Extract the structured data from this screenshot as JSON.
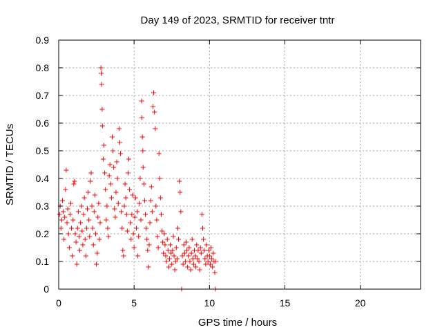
{
  "chart_data": {
    "type": "scatter",
    "title": "Day 149 of 2023, SRMTID for receiver tntr",
    "xlabel": "GPS time / hours",
    "ylabel": "SRMTID / TECUs",
    "xlim": [
      0,
      24
    ],
    "ylim": [
      0,
      0.9
    ],
    "xticks": [
      0,
      5,
      10,
      15,
      20
    ],
    "yticks": [
      0,
      0.1,
      0.2,
      0.3,
      0.4,
      0.5,
      0.6,
      0.7,
      0.8,
      0.9
    ],
    "xtick_labels": [
      "0",
      "5",
      "10",
      "15",
      "20"
    ],
    "ytick_labels": [
      "0",
      "0.1",
      "0.2",
      "0.3",
      "0.4",
      "0.5",
      "0.6",
      "0.7",
      "0.8",
      "0.9"
    ],
    "grid": true,
    "marker": "+",
    "color": "#ff0000",
    "series": [
      {
        "name": "SRMTID",
        "points": [
          [
            0.05,
            0.27
          ],
          [
            0.1,
            0.3
          ],
          [
            0.15,
            0.22
          ],
          [
            0.2,
            0.25
          ],
          [
            0.25,
            0.32
          ],
          [
            0.3,
            0.28
          ],
          [
            0.35,
            0.18
          ],
          [
            0.4,
            0.26
          ],
          [
            0.45,
            0.36
          ],
          [
            0.5,
            0.43
          ],
          [
            0.55,
            0.24
          ],
          [
            0.6,
            0.29
          ],
          [
            0.65,
            0.2
          ],
          [
            0.7,
            0.15
          ],
          [
            0.75,
            0.27
          ],
          [
            0.8,
            0.31
          ],
          [
            0.85,
            0.22
          ],
          [
            0.9,
            0.12
          ],
          [
            0.95,
            0.25
          ],
          [
            1.0,
            0.38
          ],
          [
            1.05,
            0.39
          ],
          [
            1.1,
            0.2
          ],
          [
            1.15,
            0.17
          ],
          [
            1.2,
            0.09
          ],
          [
            1.25,
            0.22
          ],
          [
            1.3,
            0.28
          ],
          [
            1.35,
            0.19
          ],
          [
            1.4,
            0.14
          ],
          [
            1.45,
            0.24
          ],
          [
            1.5,
            0.3
          ],
          [
            1.55,
            0.21
          ],
          [
            1.6,
            0.16
          ],
          [
            1.65,
            0.27
          ],
          [
            1.7,
            0.33
          ],
          [
            1.75,
            0.18
          ],
          [
            1.8,
            0.12
          ],
          [
            1.85,
            0.22
          ],
          [
            1.9,
            0.29
          ],
          [
            1.95,
            0.35
          ],
          [
            2.0,
            0.25
          ],
          [
            2.05,
            0.19
          ],
          [
            2.1,
            0.39
          ],
          [
            2.15,
            0.42
          ],
          [
            2.2,
            0.3
          ],
          [
            2.25,
            0.22
          ],
          [
            2.3,
            0.16
          ],
          [
            2.35,
            0.28
          ],
          [
            2.4,
            0.34
          ],
          [
            2.45,
            0.2
          ],
          [
            2.5,
            0.09
          ],
          [
            2.55,
            0.13
          ],
          [
            2.6,
            0.26
          ],
          [
            2.65,
            0.31
          ],
          [
            2.7,
            0.18
          ],
          [
            2.75,
            0.24
          ],
          [
            2.8,
            0.8
          ],
          [
            2.82,
            0.78
          ],
          [
            2.85,
            0.74
          ],
          [
            2.88,
            0.65
          ],
          [
            2.9,
            0.59
          ],
          [
            2.95,
            0.47
          ],
          [
            3.0,
            0.52
          ],
          [
            3.05,
            0.42
          ],
          [
            3.1,
            0.36
          ],
          [
            3.15,
            0.25
          ],
          [
            3.2,
            0.3
          ],
          [
            3.25,
            0.22
          ],
          [
            3.3,
            0.19
          ],
          [
            3.35,
            0.41
          ],
          [
            3.4,
            0.45
          ],
          [
            3.45,
            0.38
          ],
          [
            3.5,
            0.33
          ],
          [
            3.55,
            0.55
          ],
          [
            3.6,
            0.5
          ],
          [
            3.65,
            0.44
          ],
          [
            3.7,
            0.29
          ],
          [
            3.75,
            0.26
          ],
          [
            3.8,
            0.35
          ],
          [
            3.85,
            0.46
          ],
          [
            3.9,
            0.4
          ],
          [
            3.95,
            0.31
          ],
          [
            4.0,
            0.58
          ],
          [
            4.05,
            0.53
          ],
          [
            4.1,
            0.49
          ],
          [
            4.15,
            0.28
          ],
          [
            4.2,
            0.22
          ],
          [
            4.25,
            0.14
          ],
          [
            4.3,
            0.12
          ],
          [
            4.35,
            0.3
          ],
          [
            4.4,
            0.38
          ],
          [
            4.45,
            0.33
          ],
          [
            4.5,
            0.27
          ],
          [
            4.55,
            0.21
          ],
          [
            4.6,
            0.42
          ],
          [
            4.65,
            0.47
          ],
          [
            4.7,
            0.36
          ],
          [
            4.75,
            0.24
          ],
          [
            4.8,
            0.18
          ],
          [
            4.85,
            0.27
          ],
          [
            4.9,
            0.34
          ],
          [
            4.95,
            0.2
          ],
          [
            5.0,
            0.15
          ],
          [
            5.05,
            0.26
          ],
          [
            5.1,
            0.33
          ],
          [
            5.15,
            0.22
          ],
          [
            5.2,
            0.28
          ],
          [
            5.25,
            0.12
          ],
          [
            5.3,
            0.19
          ],
          [
            5.35,
            0.31
          ],
          [
            5.4,
            0.4
          ],
          [
            5.45,
            0.25
          ],
          [
            5.5,
            0.68
          ],
          [
            5.52,
            0.62
          ],
          [
            5.55,
            0.55
          ],
          [
            5.58,
            0.5
          ],
          [
            5.6,
            0.44
          ],
          [
            5.65,
            0.38
          ],
          [
            5.7,
            0.32
          ],
          [
            5.75,
            0.27
          ],
          [
            5.8,
            0.22
          ],
          [
            5.85,
            0.18
          ],
          [
            5.9,
            0.14
          ],
          [
            5.95,
            0.08
          ],
          [
            6.0,
            0.16
          ],
          [
            6.05,
            0.24
          ],
          [
            6.1,
            0.32
          ],
          [
            6.15,
            0.37
          ],
          [
            6.2,
            0.28
          ],
          [
            6.25,
            0.66
          ],
          [
            6.3,
            0.71
          ],
          [
            6.35,
            0.64
          ],
          [
            6.4,
            0.58
          ],
          [
            6.45,
            0.3
          ],
          [
            6.5,
            0.25
          ],
          [
            6.55,
            0.19
          ],
          [
            6.6,
            0.15
          ],
          [
            6.65,
            0.49
          ],
          [
            6.7,
            0.4
          ],
          [
            6.75,
            0.33
          ],
          [
            6.8,
            0.27
          ],
          [
            6.85,
            0.21
          ],
          [
            6.9,
            0.17
          ],
          [
            6.95,
            0.13
          ],
          [
            7.0,
            0.2
          ],
          [
            7.05,
            0.16
          ],
          [
            7.1,
            0.12
          ],
          [
            7.15,
            0.1
          ],
          [
            7.2,
            0.18
          ],
          [
            7.25,
            0.14
          ],
          [
            7.3,
            0.08
          ],
          [
            7.35,
            0.11
          ],
          [
            7.4,
            0.16
          ],
          [
            7.45,
            0.13
          ],
          [
            7.5,
            0.09
          ],
          [
            7.55,
            0.14
          ],
          [
            7.6,
            0.19
          ],
          [
            7.65,
            0.12
          ],
          [
            7.7,
            0.07
          ],
          [
            7.75,
            0.1
          ],
          [
            7.8,
            0.15
          ],
          [
            7.85,
            0.11
          ],
          [
            7.9,
            0.22
          ],
          [
            7.95,
            0.18
          ],
          [
            8.0,
            0.39
          ],
          [
            8.05,
            0.35
          ],
          [
            8.1,
            0.28
          ],
          [
            8.15,
            0.0
          ],
          [
            8.2,
            0.12
          ],
          [
            8.25,
            0.09
          ],
          [
            8.3,
            0.16
          ],
          [
            8.35,
            0.13
          ],
          [
            8.4,
            0.1
          ],
          [
            8.45,
            0.17
          ],
          [
            8.5,
            0.14
          ],
          [
            8.55,
            0.08
          ],
          [
            8.6,
            0.12
          ],
          [
            8.65,
            0.15
          ],
          [
            8.7,
            0.1
          ],
          [
            8.75,
            0.07
          ],
          [
            8.8,
            0.13
          ],
          [
            8.85,
            0.18
          ],
          [
            8.9,
            0.11
          ],
          [
            8.95,
            0.09
          ],
          [
            9.0,
            0.14
          ],
          [
            9.05,
            0.12
          ],
          [
            9.1,
            0.08
          ],
          [
            9.15,
            0.16
          ],
          [
            9.2,
            0.11
          ],
          [
            9.25,
            0.14
          ],
          [
            9.3,
            0.1
          ],
          [
            9.35,
            0.07
          ],
          [
            9.4,
            0.15
          ],
          [
            9.45,
            0.13
          ],
          [
            9.5,
            0.27
          ],
          [
            9.55,
            0.22
          ],
          [
            9.6,
            0.18
          ],
          [
            9.65,
            0.14
          ],
          [
            9.7,
            0.11
          ],
          [
            9.75,
            0.09
          ],
          [
            9.8,
            0.16
          ],
          [
            9.85,
            0.12
          ],
          [
            9.9,
            0.1
          ],
          [
            9.95,
            0.14
          ],
          [
            10.0,
            0.12
          ],
          [
            10.05,
            0.09
          ],
          [
            10.1,
            0.15
          ],
          [
            10.15,
            0.11
          ],
          [
            10.2,
            0.08
          ],
          [
            10.25,
            0.13
          ],
          [
            10.3,
            0.1
          ],
          [
            10.35,
            0.06
          ],
          [
            10.38,
            0.0
          ],
          [
            10.4,
            0.1
          ]
        ]
      }
    ]
  }
}
